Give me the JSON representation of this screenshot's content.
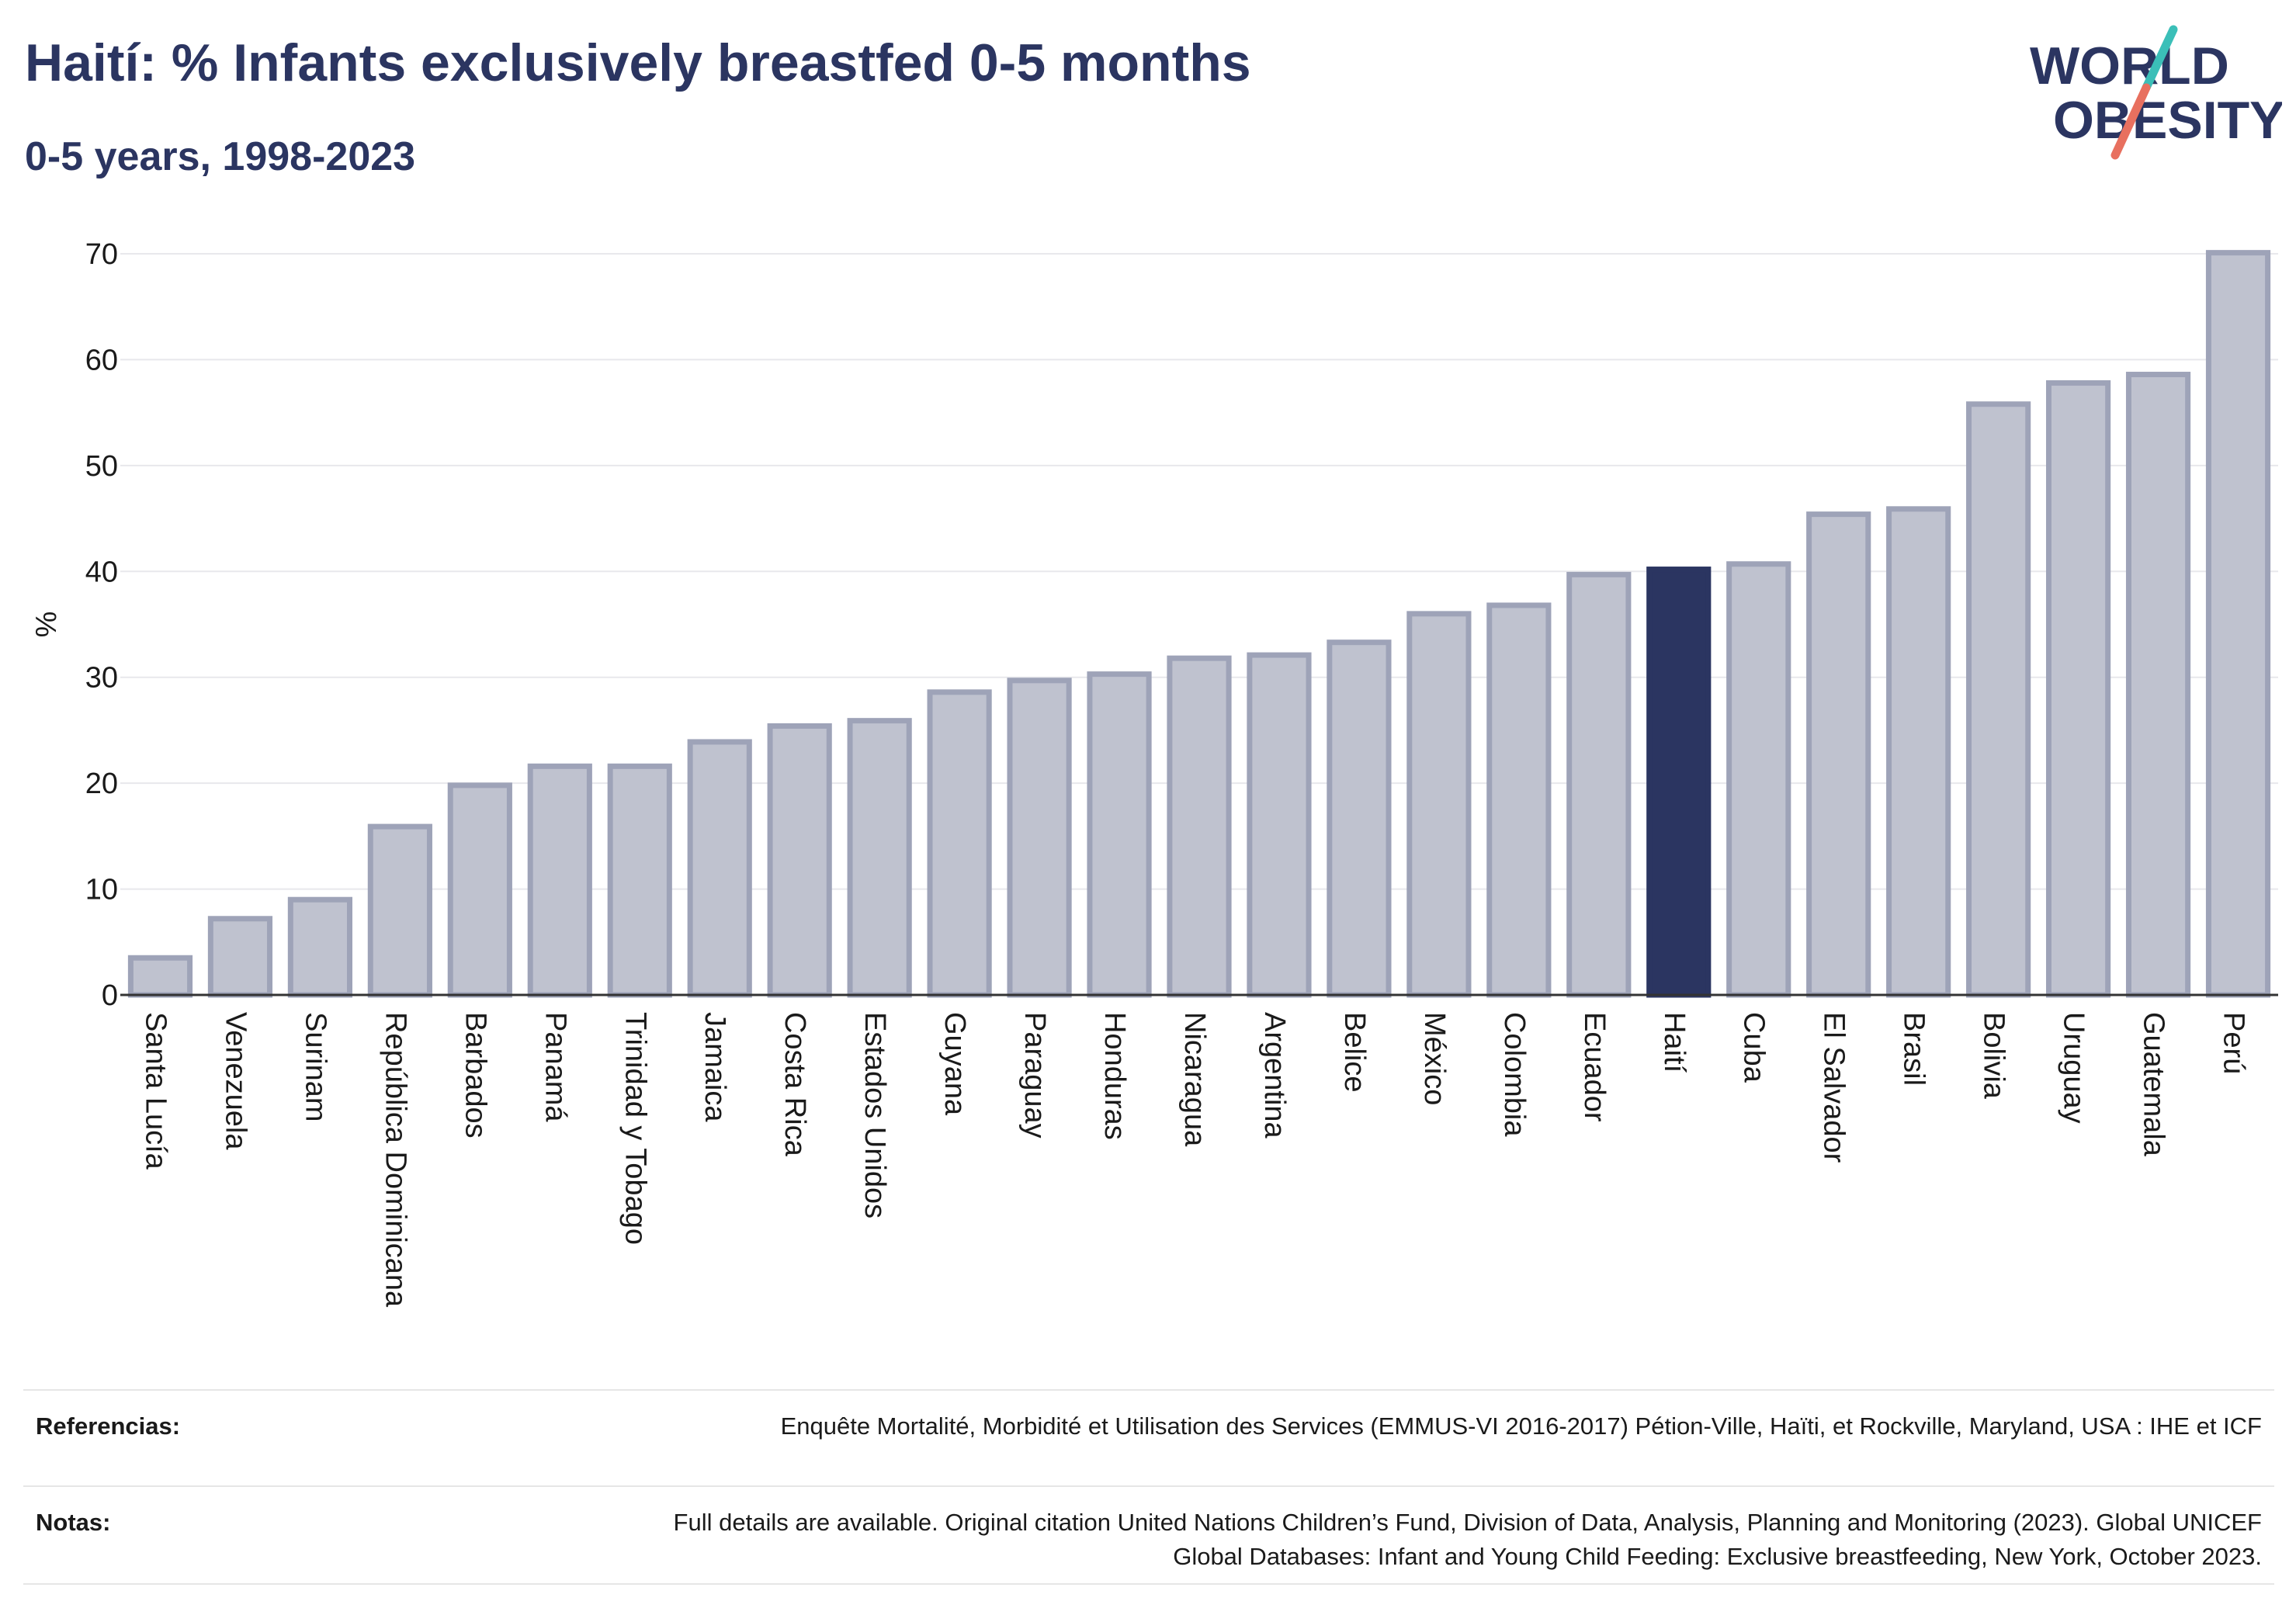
{
  "header": {
    "title": "Haití: % Infants exclusively breastfed 0-5 months",
    "subtitle": "0-5 years, 1998-2023"
  },
  "logo": {
    "line1": "WORLD",
    "line2": "OBESITY",
    "colors": {
      "text": "#2b3561",
      "slash_top": "#3bbfb8",
      "slash_bottom": "#e8705f"
    }
  },
  "chart_data": {
    "type": "bar",
    "ylabel": "%",
    "ylim": [
      0,
      70
    ],
    "yticks": [
      0,
      10,
      20,
      30,
      40,
      50,
      60,
      70
    ],
    "grid": true,
    "highlight": "Haití",
    "colors": {
      "bar": "#bfc2cf",
      "bar_border": "#9ea3b8",
      "highlight": "#2b3561",
      "grid": "#e8e8ec",
      "axis": "#333333"
    },
    "categories": [
      "Santa Lucía",
      "Venezuela",
      "Surinam",
      "República Dominicana",
      "Barbados",
      "Panamá",
      "Trinidad y Tobago",
      "Jamaica",
      "Costa Rica",
      "Estados Unidos",
      "Guyana",
      "Paraguay",
      "Honduras",
      "Nicaragua",
      "Argentina",
      "Belice",
      "México",
      "Colombia",
      "Ecuador",
      "Haití",
      "Cuba",
      "El Salvador",
      "Brasil",
      "Bolivia",
      "Uruguay",
      "Guatemala",
      "Perú"
    ],
    "values": [
      3.5,
      7.2,
      9.0,
      15.9,
      19.8,
      21.6,
      21.6,
      23.9,
      25.4,
      25.9,
      28.6,
      29.7,
      30.3,
      31.8,
      32.1,
      33.3,
      36.0,
      36.8,
      39.7,
      40.2,
      40.7,
      45.4,
      45.9,
      55.8,
      57.8,
      58.6,
      70.1
    ]
  },
  "footer": {
    "references_label": "Referencias:",
    "references_text": "Enquête Mortalité, Morbidité et Utilisation des Services (EMMUS-VI 2016-2017) Pétion-Ville, Haïti, et Rockville, Maryland, USA : IHE et ICF",
    "notes_label": "Notas:",
    "notes_text": "Full details are available. Original citation United Nations Children’s Fund, Division of Data, Analysis, Planning and Monitoring (2023). Global UNICEF Global Databases: Infant and Young Child Feeding: Exclusive breastfeeding, New York, October 2023."
  }
}
